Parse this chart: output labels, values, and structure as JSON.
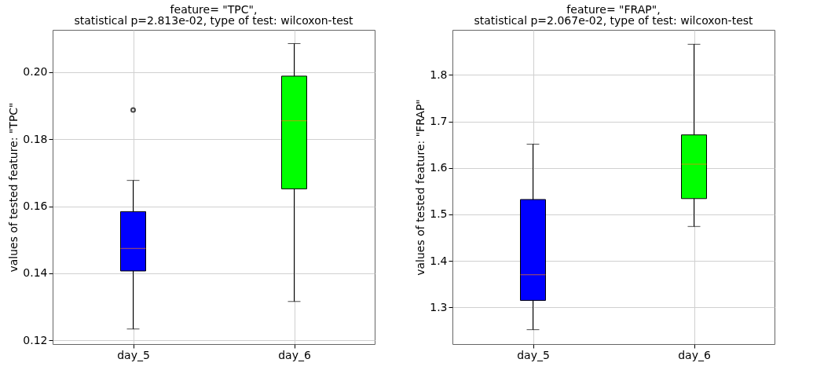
{
  "chart_data": [
    {
      "type": "box",
      "title": "feature= \"TPC\",",
      "subtitle": "statistical p=2.813e-02, type of test: wilcoxon-test",
      "ylabel": "values of tested feature: \"TPC\"",
      "categories": [
        "day_5",
        "day_6"
      ],
      "colors": [
        "#0000ff",
        "#00ff00"
      ],
      "boxes": [
        {
          "low": 0.1234,
          "q1": 0.1407,
          "median": 0.1474,
          "q3": 0.1584,
          "high": 0.1677,
          "outliers": [
            0.1887
          ]
        },
        {
          "low": 0.1316,
          "q1": 0.1652,
          "median": 0.1855,
          "q3": 0.1988,
          "high": 0.2085
        }
      ],
      "ylim": [
        0.1189,
        0.2126
      ],
      "yticks": [
        0.12,
        0.14,
        0.16,
        0.18,
        {
          "value": 0.2,
          "label": "0.20"
        }
      ],
      "grid": true
    },
    {
      "type": "box",
      "title": "feature= \"FRAP\",",
      "subtitle": "statistical p=2.067e-02, type of test: wilcoxon-test",
      "ylabel": "values of tested feature: \"FRAP\"",
      "categories": [
        "day_5",
        "day_6"
      ],
      "colors": [
        "#0000ff",
        "#00ff00"
      ],
      "boxes": [
        {
          "low": 1.252,
          "q1": 1.315,
          "median": 1.37,
          "q3": 1.532,
          "high": 1.651
        },
        {
          "low": 1.474,
          "q1": 1.534,
          "median": 1.608,
          "q3": 1.671,
          "high": 1.866
        }
      ],
      "ylim": [
        1.221,
        1.897
      ],
      "yticks": [
        1.3,
        1.4,
        1.5,
        1.6,
        1.7,
        1.8
      ],
      "grid": true
    }
  ]
}
